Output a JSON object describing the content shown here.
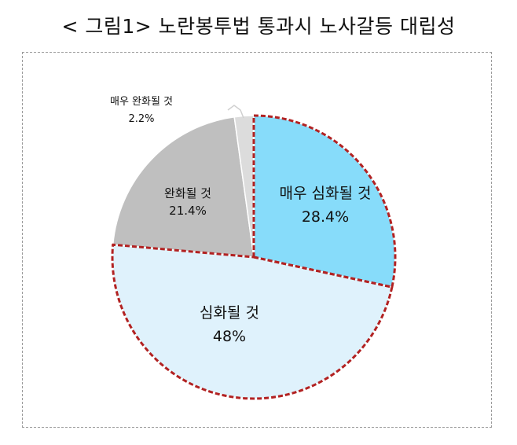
{
  "title": "< 그림1> 노란봉투법 통과시 노사갈등 대립성",
  "chart_data": {
    "type": "pie",
    "slices": [
      {
        "label": "매우 심화될 것",
        "value": 28.4,
        "value_text": "28.4%",
        "color": "#87dcfa",
        "highlighted": true
      },
      {
        "label": "심화될 것",
        "value": 48,
        "value_text": "48%",
        "color": "#dff2fc",
        "highlighted": true
      },
      {
        "label": "완화될 것",
        "value": 21.4,
        "value_text": "21.4%",
        "color": "#bfbfbf",
        "highlighted": false
      },
      {
        "label": "매우 완화될 것",
        "value": 2.2,
        "value_text": "2.2%",
        "color": "#dcdcdc",
        "highlighted": false
      }
    ],
    "highlight_border_color": "#b22222"
  }
}
